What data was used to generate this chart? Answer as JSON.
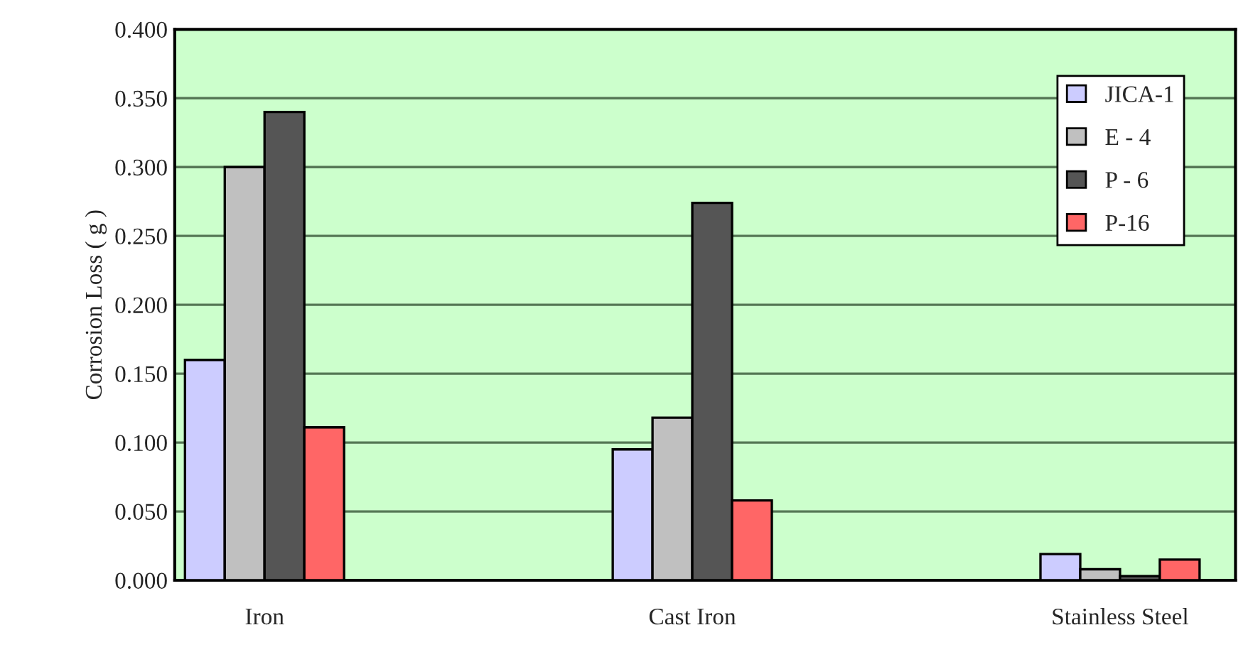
{
  "chart_data": {
    "type": "bar",
    "ylabel": "Corrosion Loss ( g )",
    "categories": [
      "Iron",
      "Cast Iron",
      "Stainless Steel"
    ],
    "series": [
      {
        "name": "JICA-1",
        "color": "#ccccff",
        "values": [
          0.16,
          0.095,
          0.019
        ]
      },
      {
        "name": "E - 4",
        "color": "#c0c0c0",
        "values": [
          0.3,
          0.118,
          0.008
        ]
      },
      {
        "name": "P - 6",
        "color": "#555555",
        "values": [
          0.34,
          0.274,
          0.003
        ]
      },
      {
        "name": "P-16",
        "color": "#ff6666",
        "values": [
          0.111,
          0.058,
          0.015
        ]
      }
    ],
    "ylim": [
      0,
      0.4
    ],
    "yticks": [
      {
        "value": 0,
        "label": "0.000"
      },
      {
        "value": 0.05,
        "label": "0.050"
      },
      {
        "value": 0.1,
        "label": "0.100"
      },
      {
        "value": 0.15,
        "label": "0.150"
      },
      {
        "value": 0.2,
        "label": "0.200"
      },
      {
        "value": 0.25,
        "label": "0.250"
      },
      {
        "value": 0.3,
        "label": "0.300"
      },
      {
        "value": 0.35,
        "label": "0.350"
      },
      {
        "value": 0.4,
        "label": "0.400"
      }
    ],
    "grid": "y",
    "legend": "top right"
  }
}
